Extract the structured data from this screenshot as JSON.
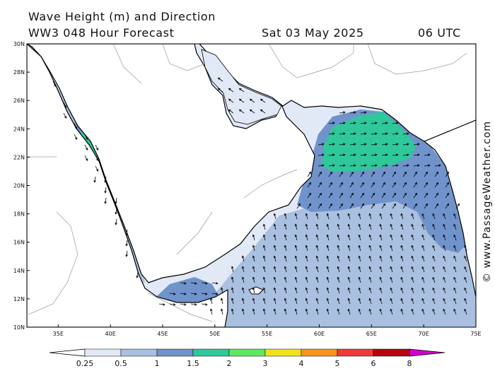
{
  "header": {
    "title": "Wave Height (m) and Direction",
    "subtitle": "WW3 048 Hour Forecast",
    "date": "Sat 03 May 2025",
    "time": "06 UTC"
  },
  "map": {
    "lat_labels": [
      "30N",
      "28N",
      "26N",
      "24N",
      "22N",
      "20N",
      "18N",
      "16N",
      "14N",
      "12N",
      "10N"
    ],
    "lon_labels": [
      "35E",
      "40E",
      "45E",
      "50E",
      "55E",
      "60E",
      "65E",
      "70E",
      "75E"
    ],
    "lon_range": [
      32,
      75
    ],
    "lat_range": [
      10,
      30
    ],
    "land_color": "#ffffff",
    "coast_color": "#000000",
    "arrow_color": "#000000"
  },
  "legend": {
    "labels": [
      "0.25",
      "0.5",
      "1",
      "1.5",
      "2",
      "3",
      "4",
      "5",
      "6",
      "8"
    ],
    "colors": [
      "#e2e9f6",
      "#a9c0e0",
      "#7093cc",
      "#2fc89a",
      "#5fe85f",
      "#f2e21a",
      "#f5951c",
      "#ee3a3a",
      "#b8000e",
      "#d000d0"
    ],
    "low_color": "#ffffff"
  },
  "credit": "© www.PassageWeather.com"
}
